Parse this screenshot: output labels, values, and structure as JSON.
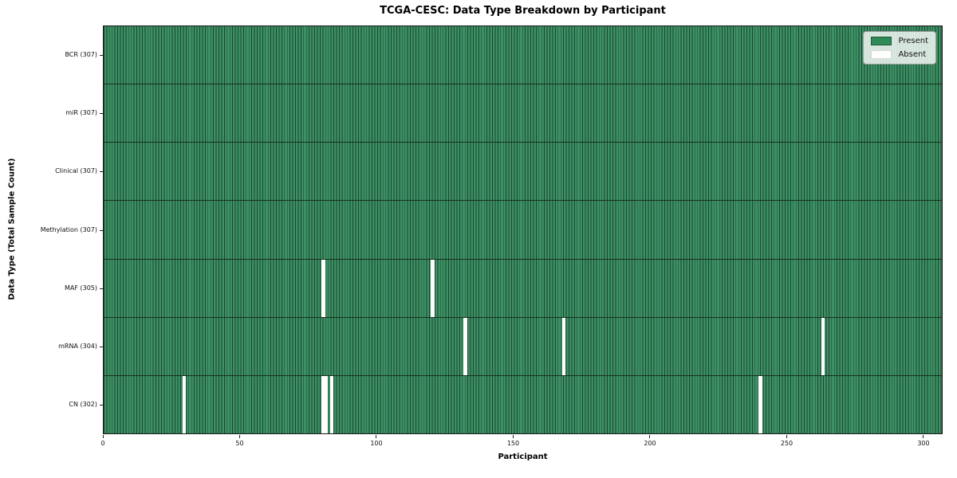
{
  "chart_data": {
    "type": "heatmap",
    "title": "TCGA-CESC: Data Type Breakdown by Participant",
    "xlabel": "Participant",
    "ylabel": "Data Type (Total Sample Count)",
    "x_ticks": [
      0,
      50,
      100,
      150,
      200,
      250,
      300
    ],
    "x_range": [
      0,
      307
    ],
    "total_participants": 307,
    "grid": false,
    "legend_position": "upper right",
    "legend": [
      {
        "label": "Present",
        "color": "#2e8b57"
      },
      {
        "label": "Absent",
        "color": "#ffffff"
      }
    ],
    "colors": {
      "present_fill": "#3c9164",
      "cell_edge": "#1c4430",
      "row_separator": "#17301f",
      "absent": "#ffffff",
      "legend_present_swatch": "#2e8b57",
      "axis": "#1a1a1a"
    },
    "rows": [
      {
        "key": "bcr",
        "label": "BCR (307)",
        "count": 307,
        "absent": []
      },
      {
        "key": "mir",
        "label": "miR (307)",
        "count": 307,
        "absent": []
      },
      {
        "key": "clinical",
        "label": "Clinical (307)",
        "count": 307,
        "absent": []
      },
      {
        "key": "methylation",
        "label": "Methylation (307)",
        "count": 307,
        "absent": []
      },
      {
        "key": "maf",
        "label": "MAF (305)",
        "count": 305,
        "absent": [
          {
            "start": 80,
            "width": 1
          },
          {
            "start": 120,
            "width": 1
          }
        ]
      },
      {
        "key": "mrna",
        "label": "mRNA (304)",
        "count": 304,
        "absent": [
          {
            "start": 132,
            "width": 1
          },
          {
            "start": 168,
            "width": 1
          },
          {
            "start": 263,
            "width": 1
          }
        ]
      },
      {
        "key": "cn",
        "label": "CN (302)",
        "count": 302,
        "absent": [
          {
            "start": 29,
            "width": 1
          },
          {
            "start": 80,
            "width": 2
          },
          {
            "start": 83,
            "width": 1
          },
          {
            "start": 240,
            "width": 1
          }
        ]
      }
    ]
  }
}
